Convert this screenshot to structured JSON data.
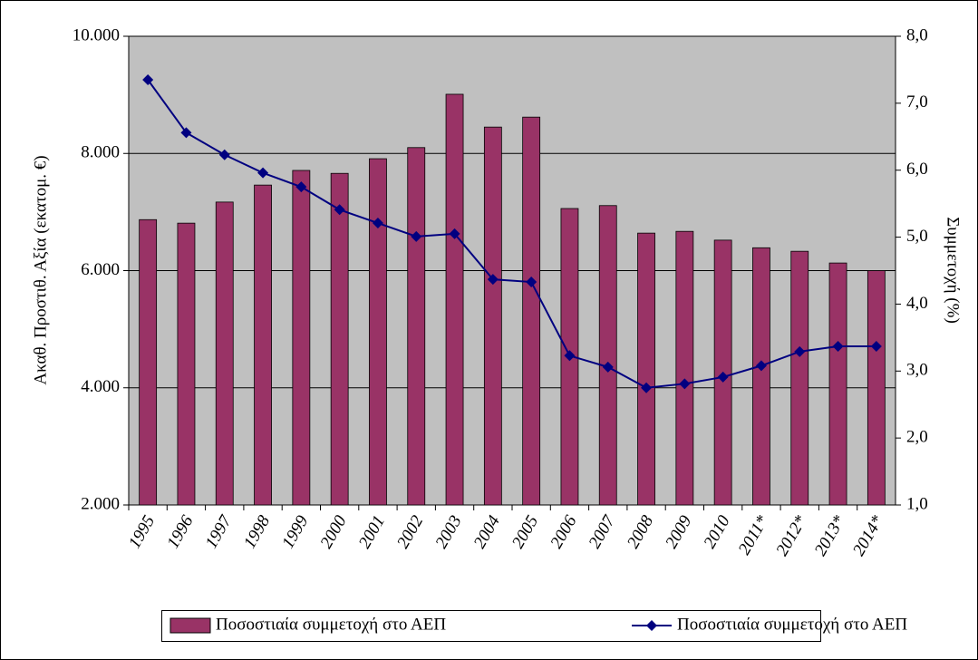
{
  "chart_data": {
    "type": "bar-line",
    "y_label": "Ακαθ. Προστιθ. Αξία (εκατομ. €)",
    "y2_label": "Συμμετοχή (%)",
    "categories": [
      "1995",
      "1996",
      "1997",
      "1998",
      "1999",
      "2000",
      "2001",
      "2002",
      "2003",
      "2004",
      "2005",
      "2006",
      "2007",
      "2008",
      "2009",
      "2010",
      "2011*",
      "2012*",
      "2013*",
      "2014*"
    ],
    "series": [
      {
        "name": "Ποσοστιαία συμμετοχή στο ΑΕΠ",
        "type": "bar",
        "color": "#993366",
        "values": [
          6870,
          6810,
          7170,
          7460,
          7710,
          7660,
          7910,
          8100,
          9010,
          8450,
          8620,
          7060,
          7110,
          6640,
          6670,
          6520,
          6390,
          6330,
          6130,
          6000
        ]
      },
      {
        "name": "Ποσοστιαία συμμετοχή στο ΑΕΠ",
        "type": "line",
        "axis": "y2",
        "color": "#000080",
        "values": [
          7.35,
          6.56,
          6.23,
          5.96,
          5.75,
          5.41,
          5.21,
          5.01,
          5.05,
          4.37,
          4.33,
          3.23,
          3.06,
          2.75,
          2.81,
          2.91,
          3.08,
          3.29,
          3.37,
          3.37
        ]
      }
    ],
    "ylim": [
      2000,
      10000
    ],
    "yticks": [
      {
        "value": 2000,
        "label": "2.000"
      },
      {
        "value": 4000,
        "label": "4.000"
      },
      {
        "value": 6000,
        "label": "6.000"
      },
      {
        "value": 8000,
        "label": "8.000"
      },
      {
        "value": 10000,
        "label": "10.000"
      }
    ],
    "y2lim": [
      1,
      8
    ],
    "y2ticks": [
      {
        "value": 1,
        "label": "1,0"
      },
      {
        "value": 2,
        "label": "2,0"
      },
      {
        "value": 3,
        "label": "3,0"
      },
      {
        "value": 4,
        "label": "4,0"
      },
      {
        "value": 5,
        "label": "5,0"
      },
      {
        "value": 6,
        "label": "6,0"
      },
      {
        "value": 7,
        "label": "7,0"
      },
      {
        "value": 8,
        "label": "8,0"
      }
    ],
    "grid": true,
    "plot_background": "#c0c0c0",
    "legend": "bottom"
  }
}
